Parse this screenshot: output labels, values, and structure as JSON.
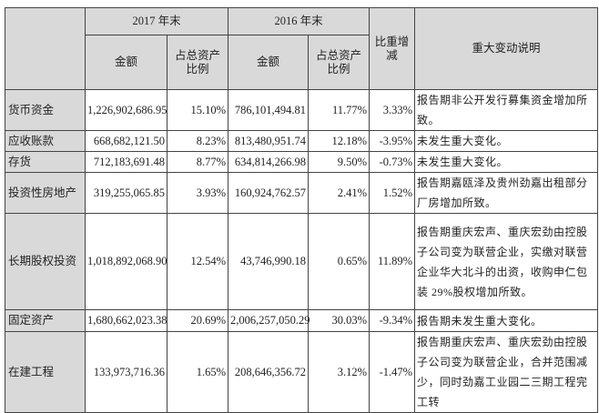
{
  "header": {
    "year_2017": "2017 年末",
    "year_2016": "2016 年末",
    "amount": "金额",
    "ratio": "占总资产比例",
    "change": "比重增减",
    "description": "重大变动说明"
  },
  "rows": [
    {
      "item": "货币资金",
      "amount_2017": "1,226,902,686.95",
      "ratio_2017": "15.10%",
      "amount_2016": "786,101,494.81",
      "ratio_2016": "11.77%",
      "change": "3.33%",
      "description": "报告期非公开发行募集资金增加所致。"
    },
    {
      "item": "应收账款",
      "amount_2017": "668,682,121.50",
      "ratio_2017": "8.23%",
      "amount_2016": "813,480,951.74",
      "ratio_2016": "12.18%",
      "change": "-3.95%",
      "description": "未发生重大变化。"
    },
    {
      "item": "存货",
      "amount_2017": "712,183,691.48",
      "ratio_2017": "8.77%",
      "amount_2016": "634,814,266.98",
      "ratio_2016": "9.50%",
      "change": "-0.73%",
      "description": "未发生重大变化。"
    },
    {
      "item": "投资性房地产",
      "amount_2017": "319,255,065.85",
      "ratio_2017": "3.93%",
      "amount_2016": "160,924,762.57",
      "ratio_2016": "2.41%",
      "change": "1.52%",
      "description": "报告期嘉瓯泽及贵州劲嘉出租部分厂房增加所致。"
    },
    {
      "item": "长期股权投资",
      "amount_2017": "1,018,892,068.90",
      "ratio_2017": "12.54%",
      "amount_2016": "43,746,990.18",
      "ratio_2016": "0.65%",
      "change": "11.89%",
      "description": "报告期重庆宏声、重庆宏劲由控股子公司变为联营企业，实缴对联营企业华大北斗的出资，收购申仁包装 29%股权增加所致。"
    },
    {
      "item": "固定资产",
      "amount_2017": "1,680,662,023.38",
      "ratio_2017": "20.69%",
      "amount_2016": "2,006,257,050.29",
      "ratio_2016": "30.03%",
      "change": "-9.34%",
      "description": "报告期未发生重大变化。"
    },
    {
      "item": "在建工程",
      "amount_2017": "133,973,716.36",
      "ratio_2017": "1.65%",
      "amount_2016": "208,646,356.72",
      "ratio_2016": "3.12%",
      "change": "-1.47%",
      "description": "报告期重庆宏声、重庆宏劲由控股子公司变为联营企业，合并范围减少，同时劲嘉工业园二三期工程完工转"
    }
  ]
}
